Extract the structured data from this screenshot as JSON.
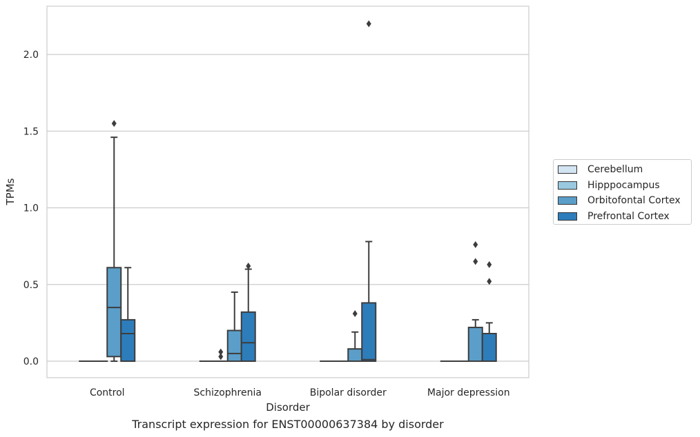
{
  "caption": "Transcript expression for ENST00000637384 by disorder",
  "chart_data": {
    "type": "box",
    "title": "",
    "xlabel": "Disorder",
    "ylabel": "TPMs",
    "ylim": [
      -0.11,
      2.33
    ],
    "yticks": [
      0.0,
      0.5,
      1.0,
      1.5,
      2.0
    ],
    "ytick_labels": [
      "0.0",
      "0.5",
      "1.0",
      "1.5",
      "2.0"
    ],
    "grid": "horizontal",
    "legend_position": "right",
    "categories": [
      "Control",
      "Schizophrenia",
      "Bipolar disorder",
      "Major depression"
    ],
    "series": [
      {
        "name": "Cerebellum",
        "color": "#d3e4f3",
        "boxes": [
          {
            "min": 0,
            "q1": 0,
            "median": 0,
            "q3": 0,
            "max": 0,
            "outliers": []
          },
          {
            "min": 0,
            "q1": 0,
            "median": 0,
            "q3": 0,
            "max": 0,
            "outliers": []
          },
          {
            "min": 0,
            "q1": 0,
            "median": 0,
            "q3": 0,
            "max": 0,
            "outliers": []
          },
          {
            "min": 0,
            "q1": 0,
            "median": 0,
            "q3": 0,
            "max": 0,
            "outliers": []
          }
        ]
      },
      {
        "name": "Hipppocampus",
        "color": "#9ac8e0",
        "boxes": [
          {
            "min": 0,
            "q1": 0,
            "median": 0,
            "q3": 0,
            "max": 0,
            "outliers": []
          },
          {
            "min": 0,
            "q1": 0,
            "median": 0,
            "q3": 0,
            "max": 0,
            "outliers": [
              0.03,
              0.06
            ]
          },
          {
            "min": 0,
            "q1": 0,
            "median": 0,
            "q3": 0,
            "max": 0,
            "outliers": []
          },
          {
            "min": 0,
            "q1": 0,
            "median": 0,
            "q3": 0,
            "max": 0,
            "outliers": []
          }
        ]
      },
      {
        "name": "Orbitofontal Cortex",
        "color": "#5b9ec9",
        "boxes": [
          {
            "min": 0,
            "q1": 0.03,
            "median": 0.35,
            "q3": 0.61,
            "max": 1.46,
            "outliers": [
              1.55
            ]
          },
          {
            "min": 0,
            "q1": 0,
            "median": 0.05,
            "q3": 0.2,
            "max": 0.45,
            "outliers": []
          },
          {
            "min": 0,
            "q1": 0,
            "median": 0,
            "q3": 0.08,
            "max": 0.19,
            "outliers": [
              0.31
            ]
          },
          {
            "min": 0,
            "q1": 0,
            "median": 0,
            "q3": 0.22,
            "max": 0.27,
            "outliers": [
              0.65,
              0.76
            ]
          }
        ]
      },
      {
        "name": "Prefrontal Cortex",
        "color": "#2d7dbb",
        "boxes": [
          {
            "min": 0,
            "q1": 0,
            "median": 0.18,
            "q3": 0.27,
            "max": 0.61,
            "outliers": []
          },
          {
            "min": 0,
            "q1": 0,
            "median": 0.12,
            "q3": 0.32,
            "max": 0.6,
            "outliers": [
              0.62
            ]
          },
          {
            "min": 0,
            "q1": 0,
            "median": 0.01,
            "q3": 0.38,
            "max": 0.78,
            "outliers": [
              2.2
            ]
          },
          {
            "min": 0,
            "q1": 0,
            "median": 0,
            "q3": 0.18,
            "max": 0.25,
            "outliers": [
              0.52,
              0.63
            ]
          }
        ]
      }
    ]
  }
}
